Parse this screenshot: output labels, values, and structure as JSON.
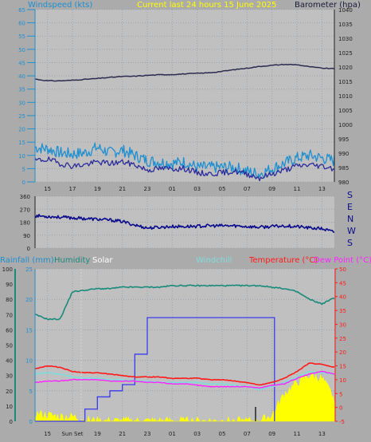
{
  "header": {
    "left": "Windspeed (kts)",
    "center": "Current last 24 hours 15 June 2025",
    "right": "Barometer (hpa)"
  },
  "x_labels": [
    "15",
    "17",
    "19",
    "21",
    "23",
    "01",
    "03",
    "05",
    "07",
    "09",
    "11",
    "13"
  ],
  "x_labels_bottom": [
    "15",
    "Sun Set",
    "19",
    "21",
    "23",
    "01",
    "03",
    "05",
    "07",
    "09",
    "11",
    "13"
  ],
  "colors": {
    "bg": "#ababab",
    "plot_bg": "#c0c0c0",
    "grid": "#9aa3ad",
    "wind_gust": "#1e8fd0",
    "wind_avg": "#2a2a9a",
    "barometer": "#2b2b4e",
    "direction": "#0a0a8c",
    "humidity": "#1a8a7a",
    "solar": "#ffff00",
    "rain": "#3a3af0",
    "windchill": "#7fdcdc",
    "temperature": "#ff1a1a",
    "dewpoint": "#ff22ff",
    "title_yellow": "#ffff00",
    "axis_teal": "#1e8fd0"
  },
  "chart_data": [
    {
      "type": "line",
      "panel": "wind-barometer",
      "title": "Current last 24 hours 15 June 2025",
      "ylabel_left": "Windspeed (kts)",
      "ylabel_right": "Barometer (hpa)",
      "ylim_left": [
        0,
        65
      ],
      "yticks_left": [
        "0",
        "5",
        "10",
        "15",
        "20",
        "25",
        "30",
        "35",
        "40",
        "45",
        "50",
        "55",
        "60",
        "65"
      ],
      "ylim_right": [
        980,
        1040
      ],
      "yticks_right": [
        "980",
        "985",
        "990",
        "995",
        "1000",
        "1005",
        "1010",
        "1015",
        "1020",
        "1025",
        "1030",
        "1035",
        "1040"
      ],
      "x": [
        14,
        15,
        16,
        17,
        18,
        19,
        20,
        21,
        22,
        23,
        24,
        25,
        26,
        27,
        28,
        29,
        30,
        31,
        32,
        33,
        34,
        35,
        36,
        37,
        38
      ],
      "series": [
        {
          "name": "Windspeed (kts)",
          "role": "gust",
          "values": [
            13,
            12.5,
            11,
            10.5,
            11,
            13,
            11,
            12,
            10,
            8,
            7.5,
            7,
            7.5,
            5.5,
            5.5,
            5.5,
            5.5,
            4,
            3,
            5,
            7,
            9,
            10,
            9,
            8
          ]
        },
        {
          "name": "Windspeed (kts)",
          "role": "average",
          "values": [
            8,
            8.5,
            7,
            6,
            6.5,
            7.5,
            7,
            7.5,
            6.5,
            4.5,
            5,
            5,
            5,
            3.5,
            3,
            3.5,
            4,
            3,
            1.5,
            3,
            4.5,
            6,
            6.5,
            6,
            5
          ]
        },
        {
          "name": "Barometer (hpa)",
          "values": [
            1015.8,
            1015.2,
            1015.2,
            1015.4,
            1015.7,
            1016.0,
            1016.4,
            1016.7,
            1016.8,
            1017.1,
            1017.3,
            1017.4,
            1017.6,
            1017.8,
            1018.0,
            1018.5,
            1019.1,
            1019.6,
            1020.2,
            1020.6,
            1020.9,
            1020.8,
            1020.1,
            1019.6,
            1019.4
          ]
        }
      ]
    },
    {
      "type": "line",
      "panel": "direction",
      "ylim": [
        0,
        360
      ],
      "yticks": [
        "0",
        "90",
        "180",
        "270",
        "360"
      ],
      "compass_labels": [
        "S",
        "E",
        "N",
        "W",
        "S"
      ],
      "x": [
        14,
        15,
        16,
        17,
        18,
        19,
        20,
        21,
        22,
        23,
        24,
        25,
        26,
        27,
        28,
        29,
        30,
        31,
        32,
        33,
        34,
        35,
        36,
        37,
        38
      ],
      "series": [
        {
          "name": "Wind direction",
          "values": [
            225,
            220,
            215,
            210,
            205,
            200,
            195,
            185,
            160,
            140,
            145,
            150,
            150,
            152,
            155,
            155,
            155,
            150,
            145,
            150,
            155,
            150,
            140,
            135,
            110
          ]
        }
      ]
    },
    {
      "type": "line",
      "panel": "rain-humidity-temperature",
      "legend": [
        "Rainfall (mm)",
        "Humidity",
        "Solar",
        "Windchill",
        "Temperature (°C)",
        "Dew Point (°C)"
      ],
      "yticks_humidity": [
        "0",
        "10",
        "20",
        "30",
        "40",
        "50",
        "60",
        "70",
        "80",
        "90",
        "100"
      ],
      "yticks_rainfall": [
        "0",
        "5",
        "10",
        "15",
        "20",
        "25"
      ],
      "yticks_temperature": [
        "-5",
        "0",
        "5",
        "10",
        "15",
        "20",
        "25",
        "30",
        "35",
        "40",
        "45",
        "50"
      ],
      "ylim_humidity": [
        0,
        100
      ],
      "ylim_rainfall": [
        0,
        25
      ],
      "ylim_temperature": [
        -5,
        50
      ],
      "x": [
        14,
        15,
        16,
        17,
        18,
        19,
        20,
        21,
        22,
        23,
        24,
        25,
        26,
        27,
        28,
        29,
        30,
        31,
        32,
        33,
        34,
        35,
        36,
        37,
        38
      ],
      "series": [
        {
          "name": "Humidity",
          "values": [
            70,
            67,
            67,
            85,
            86,
            87,
            87,
            88,
            88,
            88,
            88,
            89,
            89,
            89,
            89,
            89,
            89,
            89,
            89,
            88,
            87,
            85,
            80,
            77,
            81
          ]
        },
        {
          "name": "Rainfall (mm)",
          "values": [
            0,
            0,
            0,
            0,
            2,
            4,
            5,
            6,
            11,
            17,
            17,
            17,
            17,
            17,
            17,
            17,
            17,
            17,
            17,
            17,
            null,
            null,
            null,
            null,
            null
          ]
        },
        {
          "name": "Temperature (°C)",
          "values": [
            14,
            15,
            14.5,
            13,
            12.5,
            12.5,
            12,
            11.5,
            11,
            11,
            11,
            10.5,
            10.5,
            10.5,
            10,
            10,
            9.5,
            9,
            8,
            9,
            10.5,
            13,
            16,
            15.5,
            14.5
          ]
        },
        {
          "name": "Windchill",
          "values": [
            12,
            12.5,
            12,
            11,
            10.5,
            10.5,
            10,
            10,
            9.5,
            9.5,
            9,
            9,
            9,
            9,
            8.5,
            8.5,
            8,
            7.5,
            6.5,
            7.5,
            9,
            11,
            13,
            12.5,
            12
          ]
        },
        {
          "name": "Dew Point (°C)",
          "values": [
            9,
            9.5,
            9.5,
            10,
            10,
            10,
            9.5,
            9.5,
            9.5,
            9,
            9,
            8.5,
            8.5,
            8,
            7.5,
            7.5,
            7.5,
            7.5,
            7,
            8,
            8.5,
            10.5,
            12,
            13,
            12
          ]
        },
        {
          "name": "Solar",
          "values": [
            5,
            4,
            3,
            3,
            1,
            0,
            0,
            0,
            0,
            0,
            0,
            0,
            0,
            0,
            0,
            0,
            0,
            0,
            0,
            4,
            18,
            25,
            30,
            28,
            15
          ]
        }
      ]
    }
  ]
}
